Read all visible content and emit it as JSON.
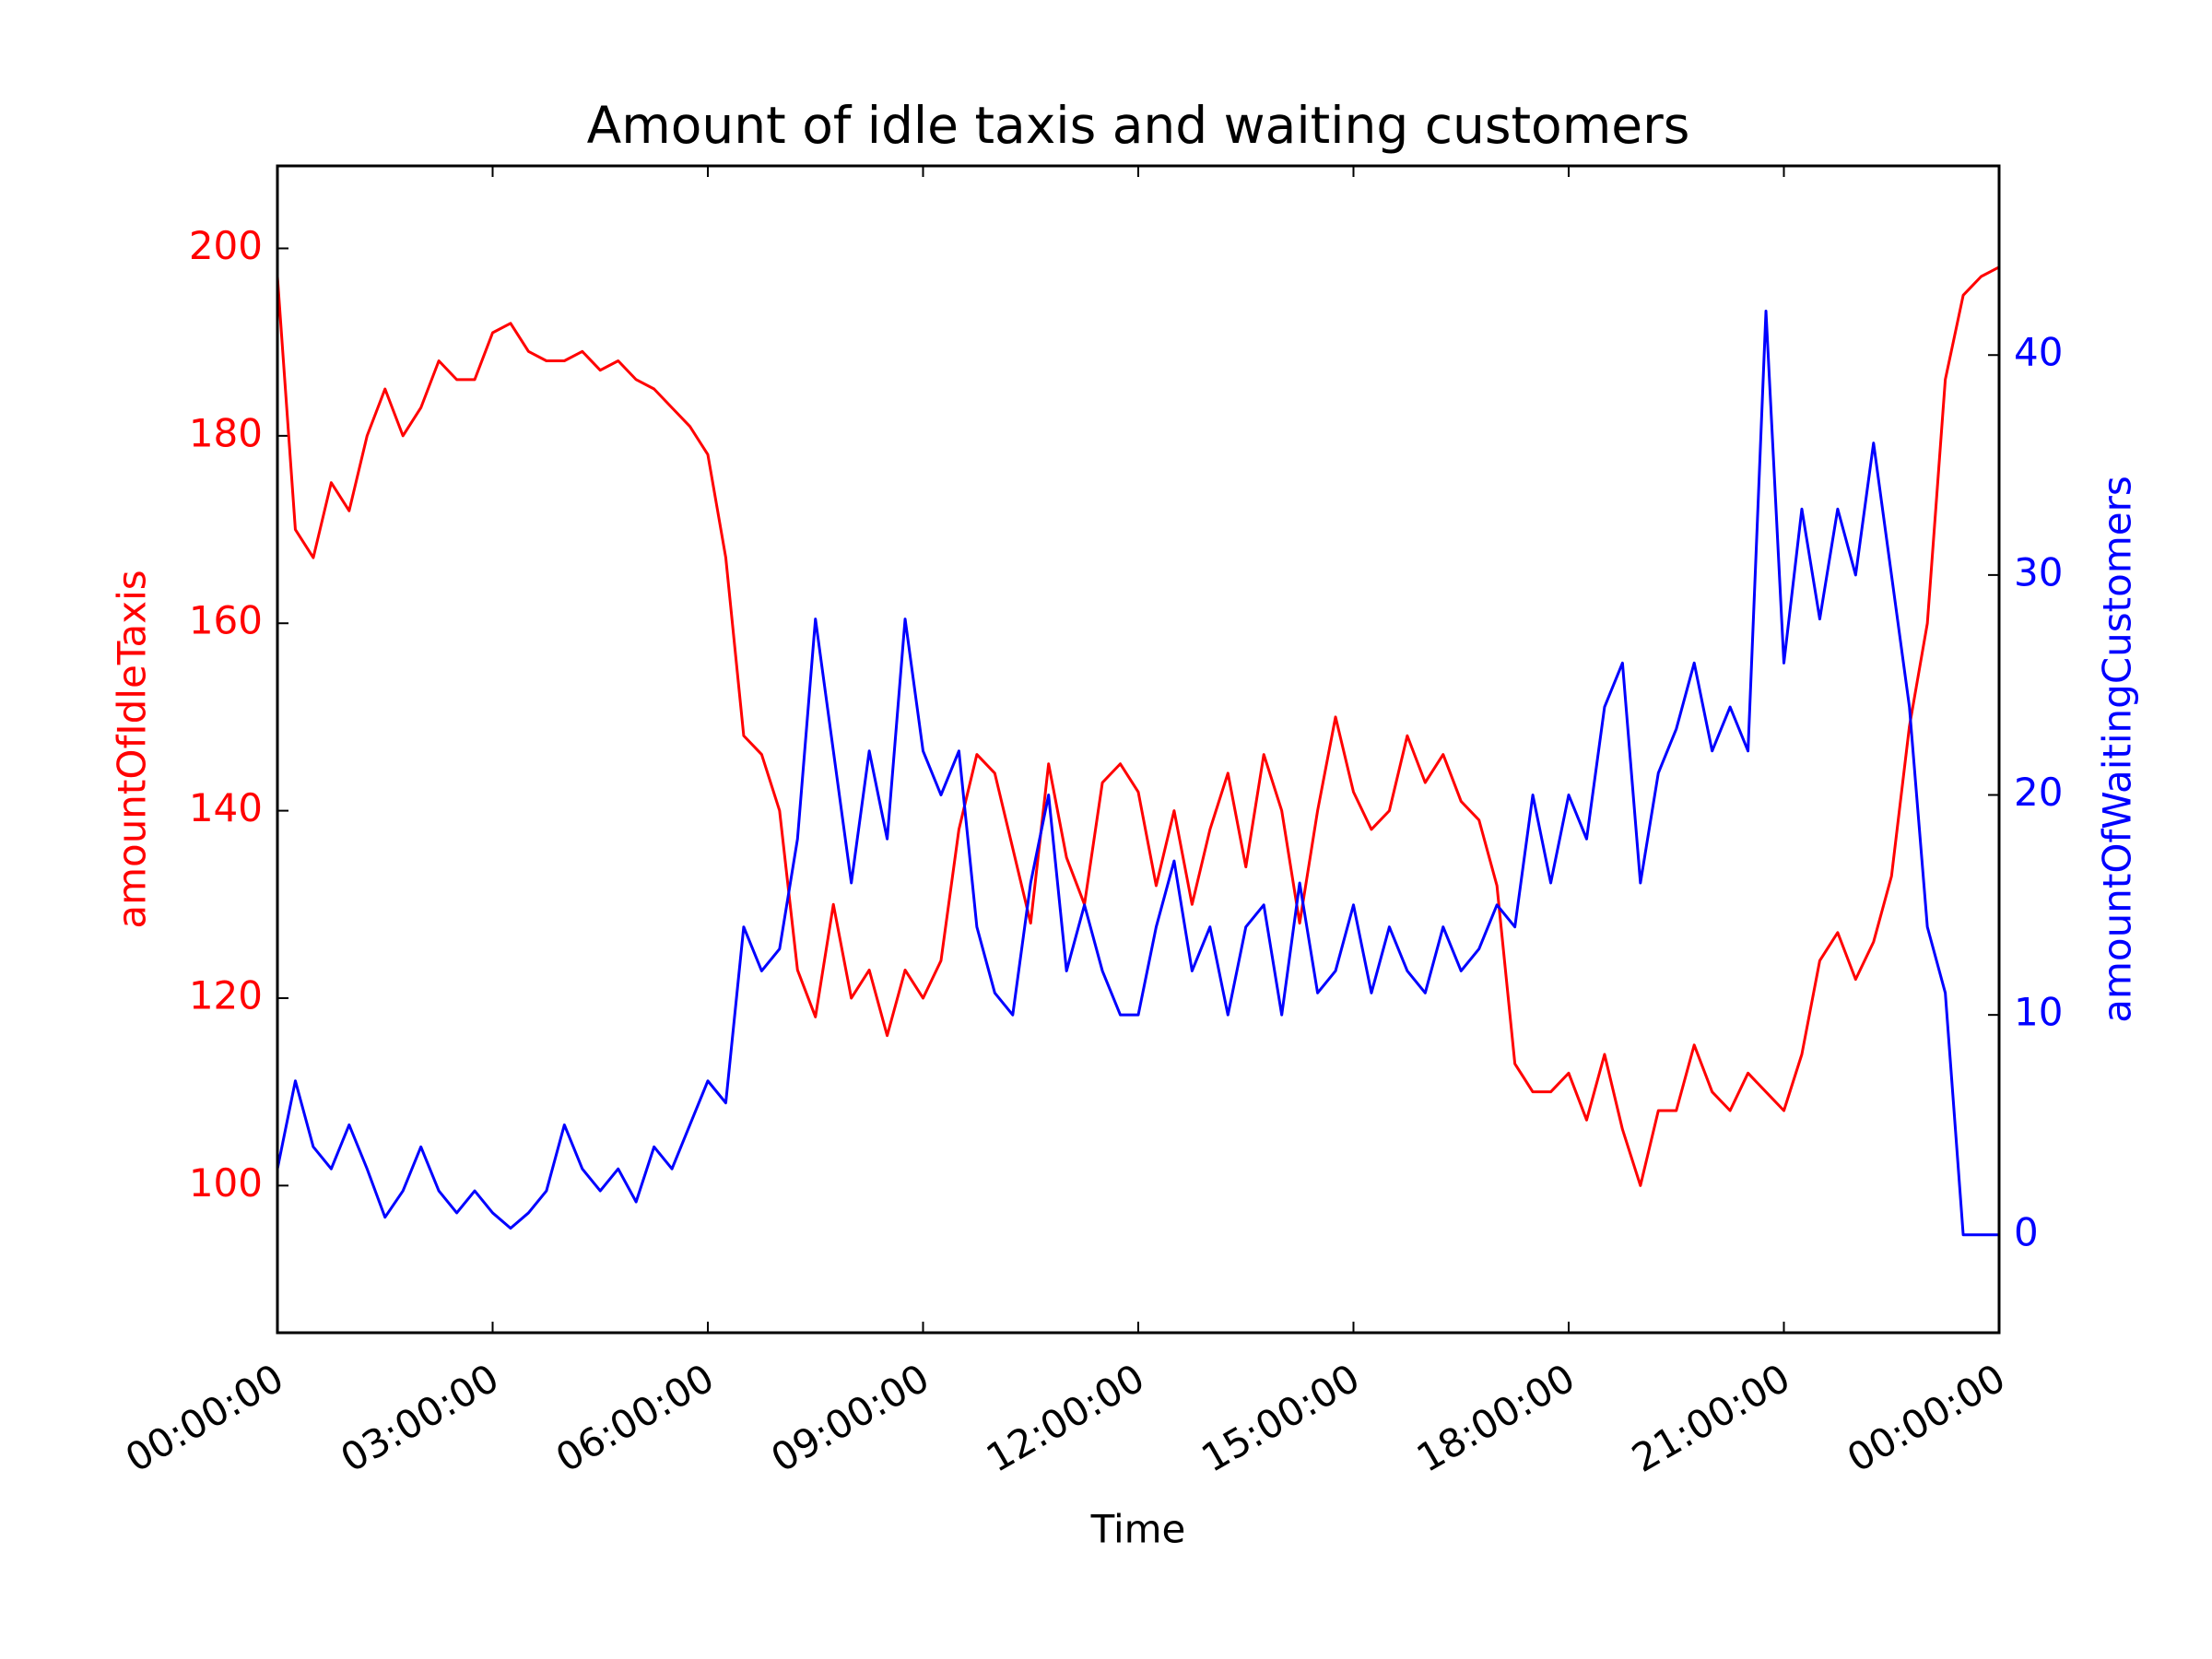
{
  "chart_data": {
    "type": "line",
    "title": "Amount of idle taxis and waiting customers",
    "x_label": "Time",
    "y_label": "amountOfIdleTaxis",
    "y2_label": "amountOfWaitingCustomers",
    "x": [
      0,
      0.25,
      0.5,
      0.75,
      1,
      1.25,
      1.5,
      1.75,
      2,
      2.25,
      2.5,
      2.75,
      3,
      3.25,
      3.5,
      3.75,
      4,
      4.25,
      4.5,
      4.75,
      5,
      5.25,
      5.5,
      5.75,
      6,
      6.25,
      6.5,
      6.75,
      7,
      7.25,
      7.5,
      7.75,
      8,
      8.25,
      8.5,
      8.75,
      9,
      9.25,
      9.5,
      9.75,
      10,
      10.25,
      10.5,
      10.75,
      11,
      11.25,
      11.5,
      11.75,
      12,
      12.25,
      12.5,
      12.75,
      13,
      13.25,
      13.5,
      13.75,
      14,
      14.25,
      14.5,
      14.75,
      15,
      15.25,
      15.5,
      15.75,
      16,
      16.25,
      16.5,
      16.75,
      17,
      17.25,
      17.5,
      17.75,
      18,
      18.25,
      18.5,
      18.75,
      19,
      19.25,
      19.5,
      19.75,
      20,
      20.25,
      20.5,
      20.75,
      21,
      21.25,
      21.5,
      21.75,
      22,
      22.25,
      22.5,
      22.75,
      23,
      23.25,
      23.5,
      23.75,
      24
    ],
    "xlim": [
      0,
      24
    ],
    "xticks": [
      {
        "value": 0,
        "label": "00:00:00"
      },
      {
        "value": 3,
        "label": "03:00:00"
      },
      {
        "value": 6,
        "label": "06:00:00"
      },
      {
        "value": 9,
        "label": "09:00:00"
      },
      {
        "value": 12,
        "label": "12:00:00"
      },
      {
        "value": 15,
        "label": "15:00:00"
      },
      {
        "value": 18,
        "label": "18:00:00"
      },
      {
        "value": 21,
        "label": "21:00:00"
      },
      {
        "value": 24,
        "label": "00:00:00"
      }
    ],
    "ylim": [
      84.3,
      208.8
    ],
    "yticks": [
      100,
      120,
      140,
      160,
      180,
      200
    ],
    "y2lim": [
      -4.45,
      48.6
    ],
    "y2ticks": [
      0,
      10,
      20,
      30,
      40
    ],
    "series": [
      {
        "name": "amountOfIdleTaxis",
        "color": "#ff0000",
        "axis": "y",
        "values": [
          197,
          170,
          167,
          175,
          172,
          180,
          185,
          180,
          183,
          188,
          186,
          186,
          191,
          192,
          189,
          188,
          188,
          189,
          187,
          188,
          186,
          185,
          183,
          181,
          178,
          167,
          148,
          146,
          140,
          123,
          118,
          130,
          120,
          123,
          116,
          123,
          120,
          124,
          138,
          146,
          144,
          136,
          128,
          145,
          135,
          130,
          143,
          145,
          142,
          132,
          140,
          130,
          138,
          144,
          134,
          146,
          140,
          128,
          140,
          150,
          142,
          138,
          140,
          148,
          143,
          146,
          141,
          139,
          132,
          113,
          110,
          110,
          112,
          107,
          114,
          106,
          100,
          108,
          108,
          115,
          110,
          108,
          112,
          110,
          108,
          114,
          124,
          127,
          122,
          126,
          133,
          149,
          160,
          186,
          195,
          197,
          198
        ]
      },
      {
        "name": "amountOfWaitingCustomers",
        "color": "#0000ff",
        "axis": "y2",
        "values": [
          3,
          7,
          4,
          3,
          5,
          3,
          0.8,
          2,
          4,
          2,
          1,
          2,
          1,
          0.3,
          1,
          2,
          5,
          3,
          2,
          3,
          1.5,
          4,
          3,
          5,
          7,
          6,
          14,
          12,
          13,
          18,
          28,
          22,
          16,
          22,
          18,
          28,
          22,
          20,
          22,
          14,
          11,
          10,
          16,
          20,
          12,
          15,
          12,
          10,
          10,
          14,
          17,
          12,
          14,
          10,
          14,
          15,
          10,
          16,
          11,
          12,
          15,
          11,
          14,
          12,
          11,
          14,
          12,
          13,
          15,
          14,
          20,
          16,
          20,
          18,
          24,
          26,
          16,
          21,
          23,
          26,
          22,
          24,
          22,
          42,
          26,
          33,
          28,
          33,
          30,
          36,
          30,
          24,
          14,
          11,
          0,
          0,
          0
        ]
      }
    ]
  }
}
